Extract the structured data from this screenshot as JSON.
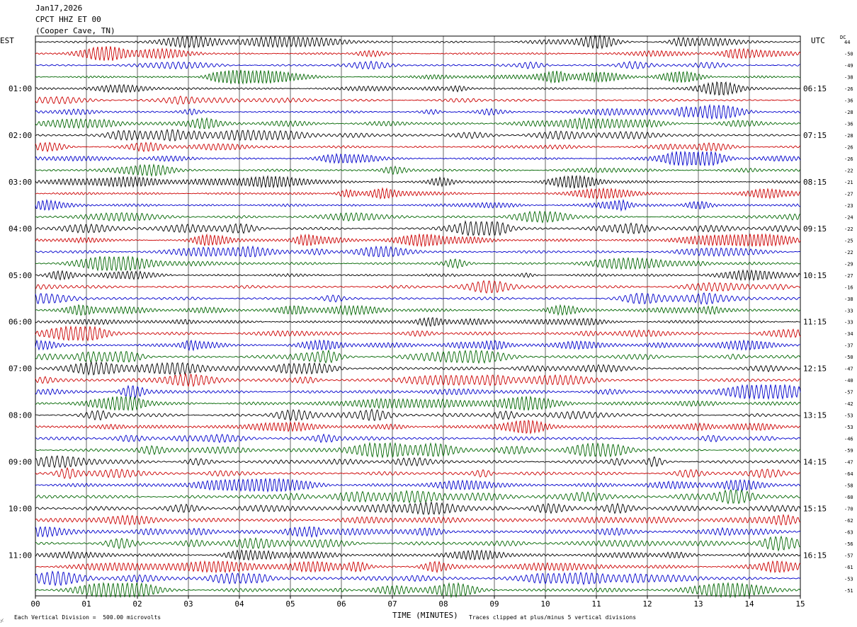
{
  "header": {
    "date": "Jan17,2026",
    "station": "CPCT HHZ ET 00",
    "location": "(Cooper Cave, TN)"
  },
  "left_zone": "EST",
  "right_zone": "UTC",
  "dc_label": "DC",
  "footer": {
    "scale_note": "Each Vertical Division =  500.00 microvolts",
    "xlabel": "TIME (MINUTES)",
    "clip_note": "Traces clipped at plus/minus 5 vertical divisions"
  },
  "chart_data": {
    "type": "line",
    "title": "Jan17,2026",
    "xlabel": "TIME (MINUTES)",
    "x_ticks": [
      "00",
      "01",
      "02",
      "03",
      "04",
      "05",
      "06",
      "07",
      "08",
      "09",
      "10",
      "11",
      "12",
      "13",
      "14",
      "15"
    ],
    "xlim": [
      0,
      15
    ],
    "grid": "vertical lines every minute",
    "trace_colors": [
      "#000000",
      "#cc0000",
      "#0000cc",
      "#006600"
    ],
    "rows": 48,
    "left_time_labels": [
      {
        "row": 4,
        "label": "01:00"
      },
      {
        "row": 8,
        "label": "02:00"
      },
      {
        "row": 12,
        "label": "03:00"
      },
      {
        "row": 16,
        "label": "04:00"
      },
      {
        "row": 20,
        "label": "05:00"
      },
      {
        "row": 24,
        "label": "06:00"
      },
      {
        "row": 28,
        "label": "07:00"
      },
      {
        "row": 32,
        "label": "08:00"
      },
      {
        "row": 36,
        "label": "09:00"
      },
      {
        "row": 40,
        "label": "10:00"
      },
      {
        "row": 44,
        "label": "11:00"
      }
    ],
    "right_time_labels": [
      {
        "row": 4,
        "label": "06:15"
      },
      {
        "row": 8,
        "label": "07:15"
      },
      {
        "row": 12,
        "label": "08:15"
      },
      {
        "row": 16,
        "label": "09:15"
      },
      {
        "row": 20,
        "label": "10:15"
      },
      {
        "row": 24,
        "label": "11:15"
      },
      {
        "row": 28,
        "label": "12:15"
      },
      {
        "row": 32,
        "label": "13:15"
      },
      {
        "row": 36,
        "label": "14:15"
      },
      {
        "row": 40,
        "label": "15:15"
      },
      {
        "row": 44,
        "label": "16:15"
      }
    ],
    "dc_offsets": [
      "44",
      "-50",
      "-49",
      "-38",
      "-26",
      "-36",
      "-28",
      "-36",
      "-28",
      "-26",
      "-26",
      "-22",
      "-21",
      "-27",
      "-23",
      "-24",
      "-22",
      "-25",
      "-22",
      "-29",
      "-27",
      "-16",
      "-38",
      "-33",
      "-33",
      "-34",
      "-37",
      "-50",
      "-47",
      "-40",
      "-57",
      "-42",
      "-53",
      "-53",
      "-46",
      "-59",
      "-47",
      "-64",
      "-58",
      "-60",
      "-70",
      "-62",
      "-63",
      "-56",
      "-57",
      "-61",
      "-53",
      "-51"
    ]
  }
}
